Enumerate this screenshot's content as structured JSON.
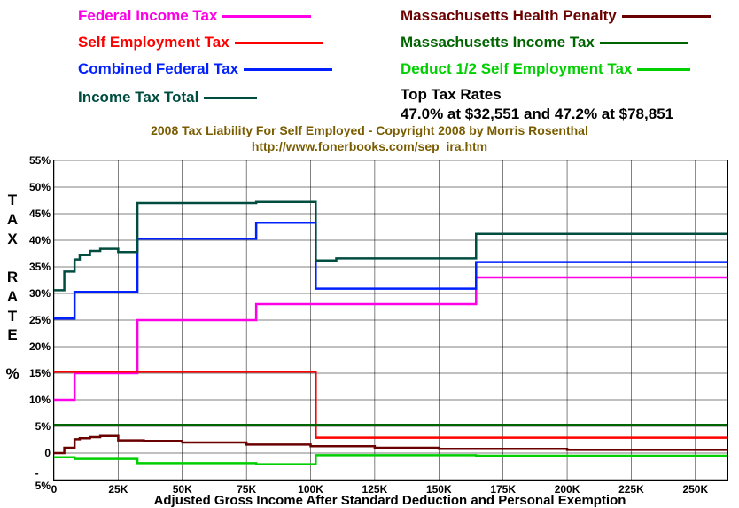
{
  "legend": [
    {
      "label": "Federal Income Tax",
      "color": "#ff00e6"
    },
    {
      "label": "Self Employment Tax",
      "color": "#ff0000"
    },
    {
      "label": "Combined Federal Tax",
      "color": "#0020ff"
    },
    {
      "label": "Income Tax Total",
      "color": "#004d40"
    },
    {
      "label": "Massachusetts Health Penalty",
      "color": "#6b0000"
    },
    {
      "label": "Massachusetts Income Tax",
      "color": "#006400"
    },
    {
      "label": "Deduct 1/2 Self Employment Tax",
      "color": "#00d000"
    }
  ],
  "attribution_line1": "2008 Tax Liability For Self Employed - Copyright 2008 by Morris Rosenthal",
  "attribution_line2": "http://www.fonerbooks.com/sep_ira.htm",
  "top_rates_title": "Top Tax Rates",
  "top_rates_value": "47.0% at $32,551 and 47.2% at $78,851",
  "chart": {
    "type": "step-line",
    "xlim": [
      0,
      262.5
    ],
    "ylim": [
      -5,
      55
    ],
    "xticks": [
      0,
      25,
      50,
      75,
      100,
      125,
      150,
      175,
      200,
      225,
      250
    ],
    "xtick_labels": [
      "0",
      "25K",
      "50K",
      "75K",
      "100K",
      "125K",
      "150K",
      "175K",
      "200K",
      "225K",
      "250K"
    ],
    "yticks": [
      -5,
      0,
      5,
      10,
      15,
      20,
      25,
      30,
      35,
      40,
      45,
      50,
      55
    ],
    "ytick_labels": [
      "- 5%",
      "0",
      "5%",
      "10%",
      "15%",
      "20%",
      "25%",
      "30%",
      "35%",
      "40%",
      "45%",
      "50%",
      "55%"
    ],
    "ylabel": "TAX RATE %",
    "xlabel": "Adjusted Gross Income After Standard Deduction and Personal Exemption",
    "grid_color": "#000000",
    "background": "#ffffff",
    "series": [
      {
        "color": "#ff00e6",
        "width": 2.5,
        "points": [
          [
            0,
            10
          ],
          [
            8,
            10
          ],
          [
            8,
            15
          ],
          [
            32.5,
            15
          ],
          [
            32.5,
            25
          ],
          [
            78.8,
            25
          ],
          [
            78.8,
            28
          ],
          [
            164.5,
            28
          ],
          [
            164.5,
            33
          ],
          [
            262.5,
            33
          ]
        ]
      },
      {
        "color": "#ff0000",
        "width": 2.5,
        "points": [
          [
            0,
            15.3
          ],
          [
            102.0,
            15.3
          ],
          [
            102.0,
            2.9
          ],
          [
            262.5,
            2.9
          ]
        ]
      },
      {
        "color": "#0020ff",
        "width": 2.5,
        "points": [
          [
            0,
            25.3
          ],
          [
            8,
            25.3
          ],
          [
            8,
            30.3
          ],
          [
            32.5,
            30.3
          ],
          [
            32.5,
            40.3
          ],
          [
            78.8,
            40.3
          ],
          [
            78.8,
            43.3
          ],
          [
            102.0,
            43.3
          ],
          [
            102.0,
            30.9
          ],
          [
            164.5,
            30.9
          ],
          [
            164.5,
            35.9
          ],
          [
            262.5,
            35.9
          ]
        ]
      },
      {
        "color": "#004d40",
        "width": 2.5,
        "points": [
          [
            0,
            30.6
          ],
          [
            4,
            30.6
          ],
          [
            4,
            34.1
          ],
          [
            8,
            34.1
          ],
          [
            8,
            36.4
          ],
          [
            10,
            36.4
          ],
          [
            10,
            37.2
          ],
          [
            14,
            37.2
          ],
          [
            14,
            38.0
          ],
          [
            18,
            38.0
          ],
          [
            18,
            38.4
          ],
          [
            25,
            38.4
          ],
          [
            25,
            37.8
          ],
          [
            32.5,
            37.8
          ],
          [
            32.5,
            47.0
          ],
          [
            78.8,
            47.0
          ],
          [
            78.8,
            47.2
          ],
          [
            102.0,
            47.2
          ],
          [
            102.0,
            36.2
          ],
          [
            110,
            36.2
          ],
          [
            110,
            36.6
          ],
          [
            164.5,
            36.6
          ],
          [
            164.5,
            41.2
          ],
          [
            262.5,
            41.2
          ]
        ]
      },
      {
        "color": "#6b0000",
        "width": 2.5,
        "points": [
          [
            0,
            0
          ],
          [
            4,
            0
          ],
          [
            4,
            1.0
          ],
          [
            8,
            1.0
          ],
          [
            8,
            2.6
          ],
          [
            10,
            2.6
          ],
          [
            10,
            2.8
          ],
          [
            14,
            2.8
          ],
          [
            14,
            3.0
          ],
          [
            18,
            3.0
          ],
          [
            18,
            3.2
          ],
          [
            25,
            3.2
          ],
          [
            25,
            2.4
          ],
          [
            35,
            2.4
          ],
          [
            35,
            2.3
          ],
          [
            50,
            2.3
          ],
          [
            50,
            2.0
          ],
          [
            75,
            2.0
          ],
          [
            75,
            1.6
          ],
          [
            100,
            1.6
          ],
          [
            100,
            1.3
          ],
          [
            125,
            1.3
          ],
          [
            125,
            1.0
          ],
          [
            150,
            1.0
          ],
          [
            150,
            0.8
          ],
          [
            200,
            0.8
          ],
          [
            200,
            0.6
          ],
          [
            262.5,
            0.6
          ]
        ]
      },
      {
        "color": "#006400",
        "width": 2.5,
        "points": [
          [
            0,
            5.3
          ],
          [
            262.5,
            5.3
          ]
        ]
      },
      {
        "color": "#00d000",
        "width": 2.5,
        "points": [
          [
            0,
            -0.8
          ],
          [
            8,
            -0.8
          ],
          [
            8,
            -1.1
          ],
          [
            32.5,
            -1.1
          ],
          [
            32.5,
            -1.9
          ],
          [
            78.8,
            -1.9
          ],
          [
            78.8,
            -2.1
          ],
          [
            102.0,
            -2.1
          ],
          [
            102.0,
            -0.4
          ],
          [
            164.5,
            -0.4
          ],
          [
            164.5,
            -0.5
          ],
          [
            262.5,
            -0.5
          ]
        ]
      }
    ]
  }
}
